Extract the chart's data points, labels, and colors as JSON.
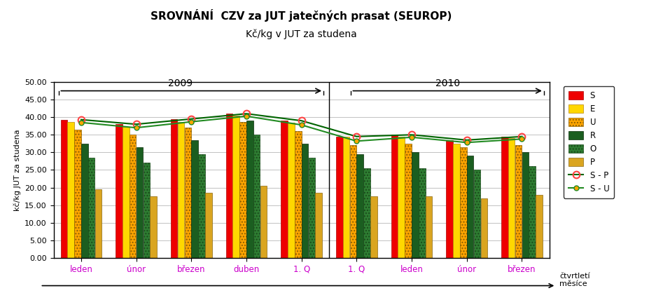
{
  "title_line1": "SROVNÁNÍ  CZV za JUT jatečných prasat (SEUROP)",
  "title_line2": "Kč/kg v JUT za studena",
  "ylabel": "kč/kg JUT za studena",
  "xlabel_note": "čtvrtletí\nměsíce",
  "categories": [
    "leden",
    "únor",
    "březen",
    "duben",
    "1. Q",
    "1. Q",
    "leden",
    "únor",
    "březen"
  ],
  "year_2009_label": "2009",
  "year_2010_label": "2010",
  "ylim": [
    0,
    50
  ],
  "yticks": [
    0,
    5.0,
    10.0,
    15.0,
    20.0,
    25.0,
    30.0,
    35.0,
    40.0,
    45.0,
    50.0
  ],
  "bar_data": {
    "S": [
      39.3,
      38.0,
      39.5,
      41.0,
      39.0,
      34.5,
      35.0,
      33.5,
      34.5
    ],
    "E": [
      38.7,
      37.3,
      38.7,
      40.5,
      38.5,
      34.5,
      34.5,
      32.5,
      34.0
    ],
    "U": [
      36.5,
      35.0,
      37.0,
      38.7,
      36.0,
      32.0,
      32.5,
      31.5,
      32.0
    ],
    "R": [
      32.5,
      31.5,
      33.5,
      39.0,
      32.5,
      29.5,
      30.0,
      29.0,
      30.0
    ],
    "O": [
      28.5,
      27.0,
      29.5,
      35.0,
      28.5,
      25.5,
      25.5,
      25.0,
      26.0
    ],
    "P": [
      19.5,
      17.5,
      18.5,
      20.5,
      18.5,
      17.5,
      17.5,
      17.0,
      18.0
    ]
  },
  "line_SU": [
    38.5,
    37.0,
    38.7,
    40.3,
    37.8,
    33.2,
    34.3,
    32.8,
    33.8
  ],
  "bar_facecolors": {
    "S": "#EE0000",
    "E": "#FFD700",
    "U": "#FFA500",
    "R": "#1B5E20",
    "O": "#2E7D32",
    "P": "#DAA520"
  },
  "bar_edgecolors": {
    "S": "#AA0000",
    "E": "#B8860B",
    "U": "#8B6000",
    "R": "#0A2E0A",
    "O": "#1A4A1A",
    "P": "#8B6914"
  },
  "hatches": {
    "S": "",
    "E": "",
    "U": "....",
    "R": "",
    "O": "....",
    "P": ""
  },
  "line_SP_color": "#006400",
  "line_SU_color": "#228B22",
  "tick_label_color": "#CC00CC",
  "background_color": "#FFFFFF",
  "legend_labels": [
    "S",
    "E",
    "U",
    "R",
    "O",
    "P",
    "S - P",
    "S - U"
  ]
}
